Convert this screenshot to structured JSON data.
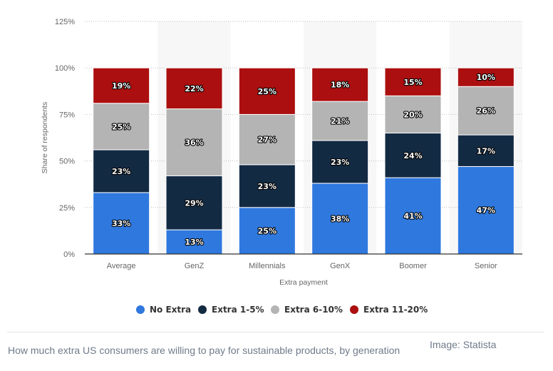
{
  "chart_data": {
    "type": "bar",
    "stacked": true,
    "categories": [
      "Average",
      "GenZ",
      "Millennials",
      "GenX",
      "Boomer",
      "Senior"
    ],
    "series": [
      {
        "name": "No Extra",
        "color": "#2f78de",
        "values": [
          33,
          13,
          25,
          38,
          41,
          47
        ],
        "labels": [
          "33%",
          "13%",
          "25%",
          "38%",
          "41%",
          "47%"
        ]
      },
      {
        "name": "Extra 1-5%",
        "color": "#132a43",
        "values": [
          23,
          29,
          23,
          23,
          24,
          17
        ],
        "labels": [
          "23%",
          "29%",
          "23%",
          "23%",
          "24%",
          "17%"
        ]
      },
      {
        "name": "Extra 6-10%",
        "color": "#b4b4b4",
        "values": [
          25,
          36,
          27,
          21,
          20,
          26
        ],
        "labels": [
          "25%",
          "36%",
          "27%",
          "21%",
          "20%",
          "26%"
        ]
      },
      {
        "name": "Extra 11-20%",
        "color": "#ab0f0f",
        "values": [
          19,
          22,
          25,
          18,
          15,
          10
        ],
        "labels": [
          "19%",
          "22%",
          "25%",
          "18%",
          "15%",
          "10%"
        ]
      }
    ],
    "xlabel": "Extra payment",
    "ylabel": "Share of respondents",
    "ylim": [
      0,
      125
    ],
    "yticks": [
      0,
      25,
      50,
      75,
      100,
      125
    ],
    "ytick_labels": [
      "0%",
      "25%",
      "50%",
      "75%",
      "100%",
      "125%"
    ],
    "grid": true,
    "legend": "bottom"
  },
  "caption": "How much extra US consumers are willing to pay for sustainable products, by generation",
  "source": "Image: Statista"
}
